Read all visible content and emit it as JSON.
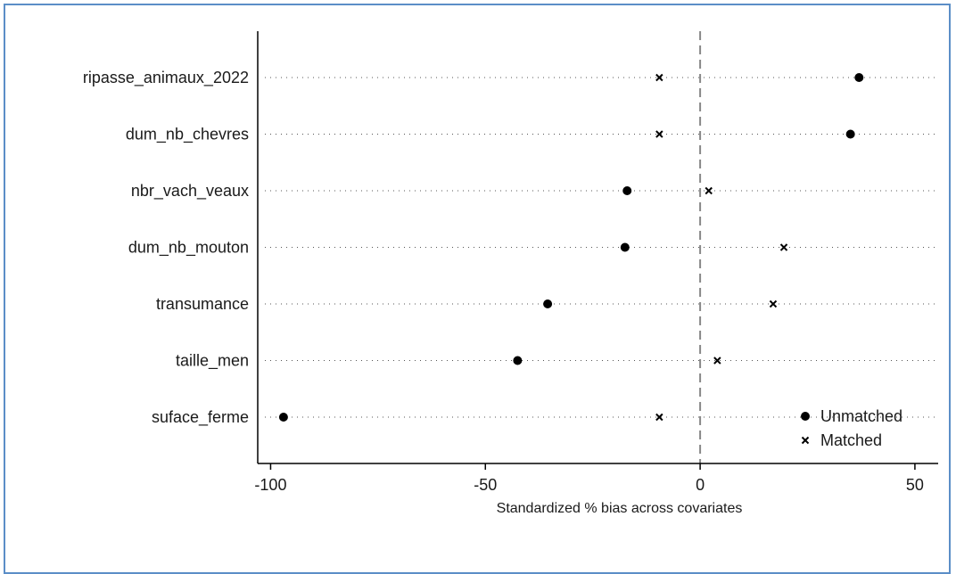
{
  "chart_data": {
    "type": "scatter",
    "xlabel": "Standardized % bias across covariates",
    "ylabel": "",
    "xlim": [
      -103,
      55
    ],
    "xticks": [
      -100,
      -50,
      0,
      50
    ],
    "xtick_labels": [
      "-100",
      "-50",
      "0",
      "50"
    ],
    "reference_line_x": 0,
    "grid": "horizontal-dotted",
    "legend_position": "bottom-right",
    "categories": [
      "ripasse_animaux_2022",
      "dum_nb_chevres",
      "nbr_vach_veaux",
      "dum_nb_mouton",
      "transumance",
      "taille_men",
      "suface_ferme"
    ],
    "series": [
      {
        "name": "Unmatched",
        "marker": "circle",
        "values": [
          37,
          35,
          -17,
          -17.5,
          -35.5,
          -42.5,
          -97
        ]
      },
      {
        "name": "Matched",
        "marker": "x",
        "values": [
          -9.5,
          -9.5,
          2,
          19.5,
          17,
          4,
          -9.5
        ]
      }
    ]
  },
  "colors": {
    "marker": "#000000",
    "frame_border": "#5b8ec7",
    "reference_line": "#888888",
    "grid": "#555555"
  }
}
